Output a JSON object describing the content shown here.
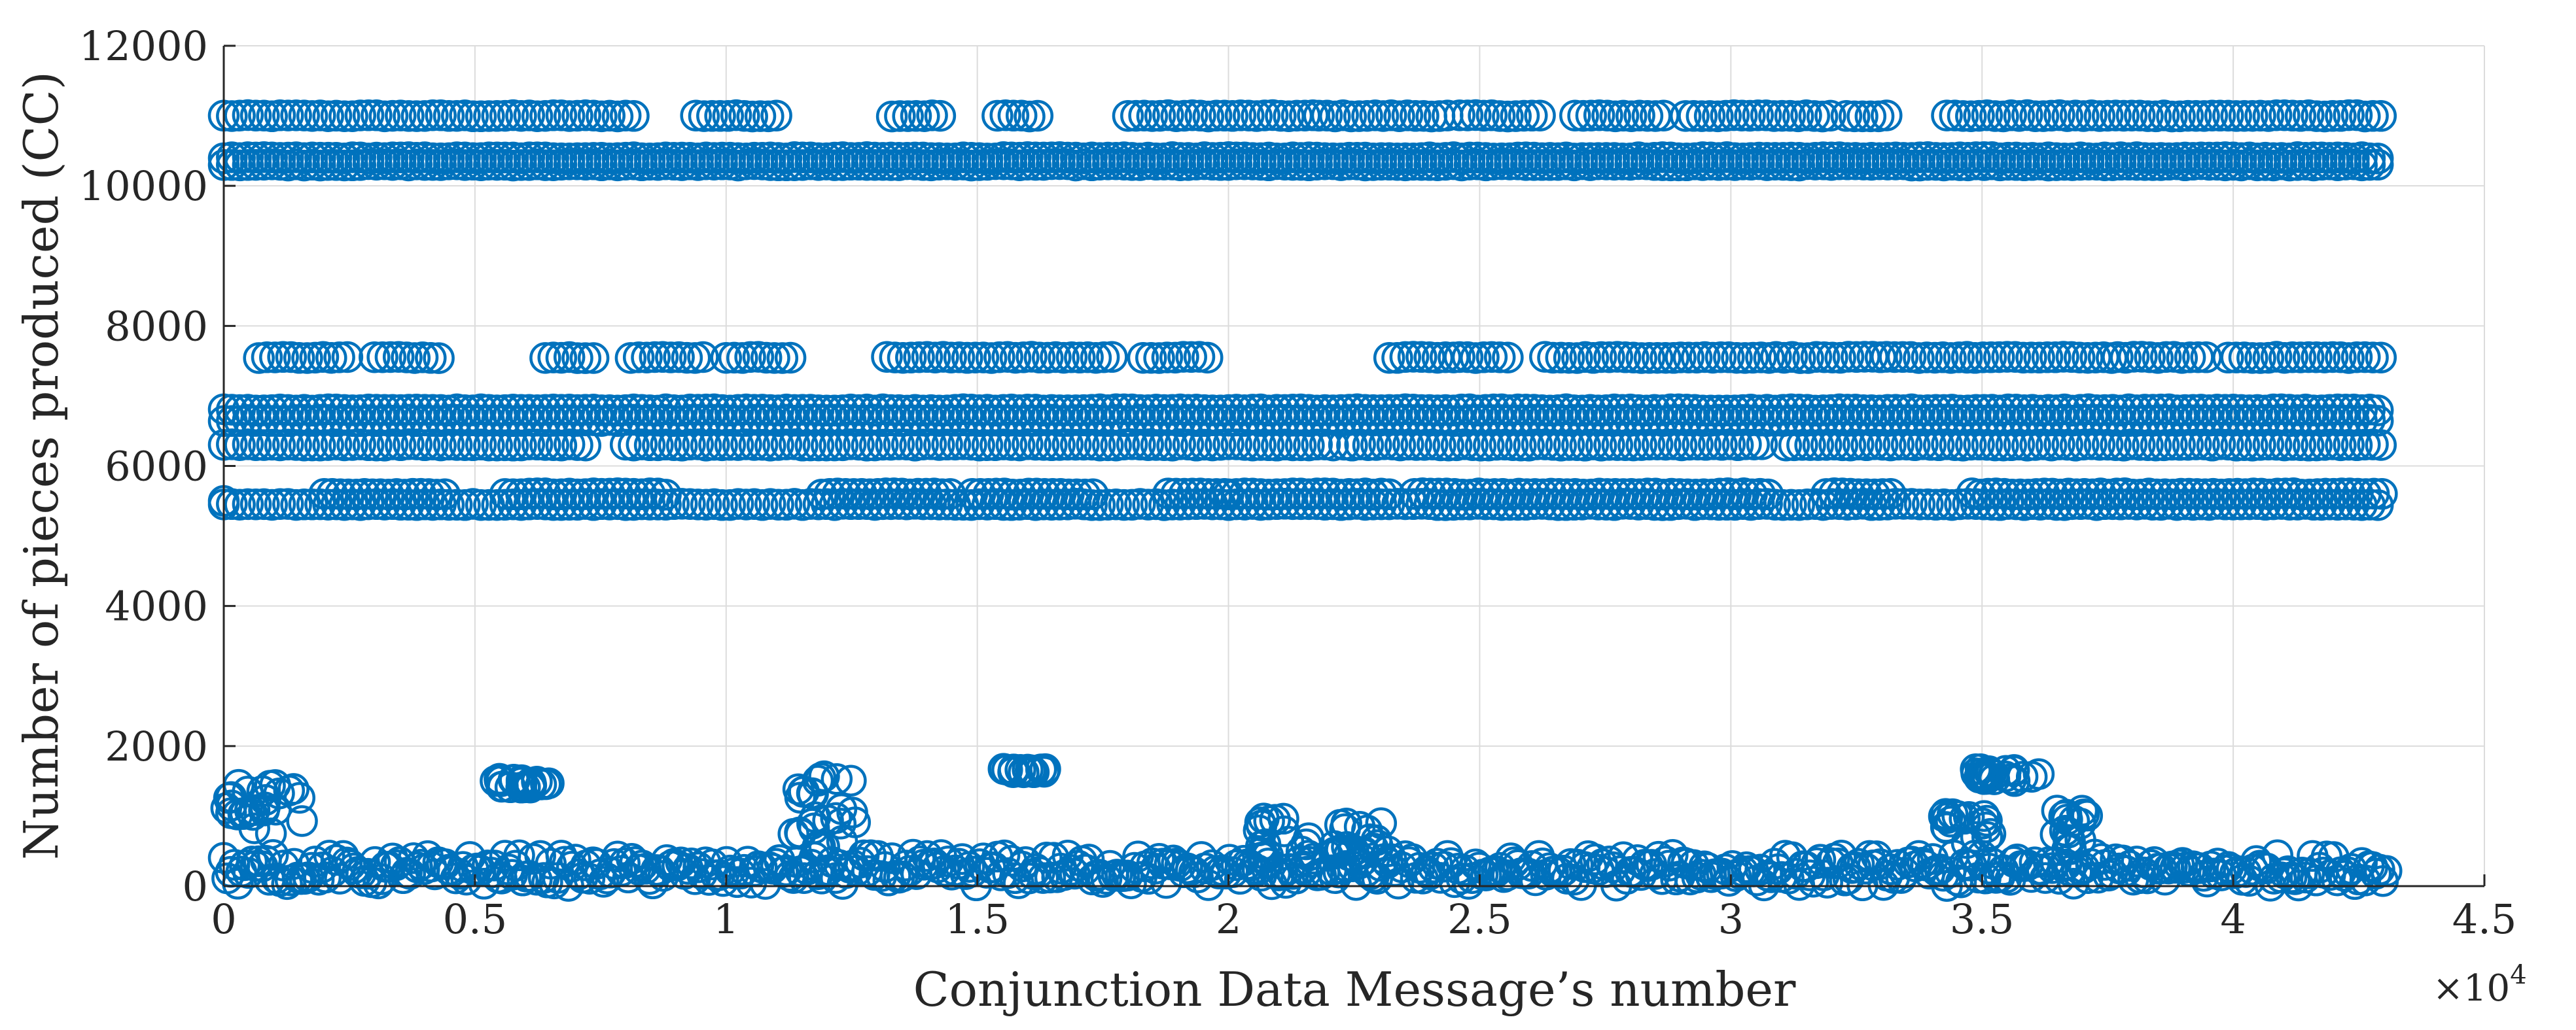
{
  "chart_data": {
    "type": "scatter",
    "title": "",
    "xlabel": "Conjunction Data Message’s number",
    "ylabel": "Number of pieces produced (CC)",
    "xlim": [
      0,
      45000
    ],
    "ylim": [
      0,
      12000
    ],
    "x_exponent_label": "×10",
    "x_exponent_power": "4",
    "x_tick_labels": [
      "0",
      "0.5",
      "1",
      "1.5",
      "2",
      "2.5",
      "3",
      "3.5",
      "4",
      "4.5"
    ],
    "x_tick_values": [
      0,
      5000,
      10000,
      15000,
      20000,
      25000,
      30000,
      35000,
      40000,
      45000
    ],
    "y_tick_labels": [
      "0",
      "2000",
      "4000",
      "6000",
      "8000",
      "10000",
      "12000"
    ],
    "y_tick_values": [
      0,
      2000,
      4000,
      6000,
      8000,
      10000,
      12000
    ],
    "grid": true,
    "marker": "open-circle",
    "color": "#0072BD",
    "x_max_data": 43000,
    "bands": [
      {
        "y": 11000,
        "segments": [
          [
            0,
            8200
          ],
          [
            9400,
            11000
          ],
          [
            13300,
            14300
          ],
          [
            15400,
            16200
          ],
          [
            18000,
            21700
          ],
          [
            21800,
            24500
          ],
          [
            24600,
            26200
          ],
          [
            26900,
            28700
          ],
          [
            29100,
            32100
          ],
          [
            32300,
            33200
          ],
          [
            34300,
            43000
          ]
        ]
      },
      {
        "y": 10400,
        "segments": [
          [
            0,
            43000
          ]
        ]
      },
      {
        "y": 10300,
        "segments": [
          [
            0,
            43000
          ]
        ]
      },
      {
        "y": 7550,
        "segments": [
          [
            700,
            2600
          ],
          [
            3000,
            4300
          ],
          [
            6400,
            7500
          ],
          [
            8100,
            9600
          ],
          [
            10000,
            11400
          ],
          [
            13200,
            14800
          ],
          [
            14800,
            17800
          ],
          [
            18300,
            19600
          ],
          [
            23200,
            24500
          ],
          [
            24600,
            25600
          ],
          [
            26300,
            29000
          ],
          [
            29000,
            30900
          ],
          [
            30900,
            33100
          ],
          [
            33100,
            34700
          ],
          [
            34700,
            37700
          ],
          [
            37700,
            39500
          ],
          [
            39900,
            43000
          ]
        ]
      },
      {
        "y": 6800,
        "segments": [
          [
            0,
            43000
          ]
        ]
      },
      {
        "y": 6650,
        "segments": [
          [
            0,
            43000
          ]
        ]
      },
      {
        "y": 6300,
        "segments": [
          [
            0,
            7200
          ],
          [
            8000,
            16800
          ],
          [
            16800,
            18400
          ],
          [
            18400,
            22100
          ],
          [
            22300,
            30700
          ],
          [
            31100,
            43000
          ]
        ]
      },
      {
        "y": 5600,
        "segments": [
          [
            2000,
            4400
          ],
          [
            5600,
            8800
          ],
          [
            11900,
            14500
          ],
          [
            14900,
            17300
          ],
          [
            18800,
            20000
          ],
          [
            20000,
            23200
          ],
          [
            23700,
            30800
          ],
          [
            31900,
            33200
          ],
          [
            34800,
            43000
          ]
        ]
      },
      {
        "y": 5450,
        "segments": [
          [
            0,
            43000
          ]
        ]
      }
    ],
    "low_band": {
      "y_range": [
        0,
        450
      ],
      "x_range": [
        0,
        43000
      ]
    },
    "clusters": [
      {
        "x_range": [
          0,
          1600
        ],
        "y_range": [
          750,
          1450
        ]
      },
      {
        "x_range": [
          5300,
          6500
        ],
        "y_range": [
          1400,
          1550
        ]
      },
      {
        "x_range": [
          11000,
          12600
        ],
        "y_range": [
          550,
          1600
        ]
      },
      {
        "x_range": [
          15500,
          16400
        ],
        "y_range": [
          1620,
          1680
        ]
      },
      {
        "x_range": [
          20600,
          21700
        ],
        "y_range": [
          400,
          1000
        ]
      },
      {
        "x_range": [
          22000,
          23200
        ],
        "y_range": [
          400,
          900
        ]
      },
      {
        "x_range": [
          34100,
          35200
        ],
        "y_range": [
          600,
          1050
        ]
      },
      {
        "x_range": [
          34800,
          36200
        ],
        "y_range": [
          1500,
          1680
        ]
      },
      {
        "x_range": [
          36300,
          37300
        ],
        "y_range": [
          500,
          1100
        ]
      }
    ],
    "outliers": [
      {
        "x": 0,
        "y": 5500
      }
    ]
  }
}
